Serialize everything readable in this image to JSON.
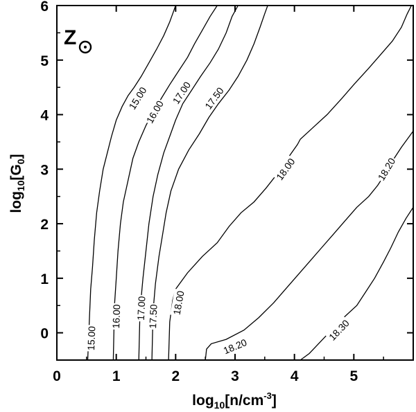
{
  "chart_data": {
    "type": "line",
    "panel_label": "Z",
    "panel_symbol": "sun-symbol-icon",
    "xlabel": {
      "base": "log",
      "sub": "10",
      "rest": "[n/cm",
      "sup": "-3",
      "end": "]"
    },
    "ylabel": {
      "base": "log",
      "sub": "10",
      "rest": "[G",
      "sub2": "0",
      "end": "]"
    },
    "xlim": [
      0,
      6
    ],
    "ylim": [
      -0.5,
      6
    ],
    "xticks": [
      0,
      1,
      2,
      3,
      4,
      5
    ],
    "yticks": [
      0,
      1,
      2,
      3,
      4,
      5,
      6
    ],
    "grid": false,
    "series": [
      {
        "name": "15.00",
        "label_at": [
          [
            0.58,
            -0.1
          ],
          [
            1.36,
            4.3
          ]
        ],
        "points": [
          [
            0.52,
            -0.5
          ],
          [
            0.55,
            0.3
          ],
          [
            0.57,
            0.8
          ],
          [
            0.6,
            1.2
          ],
          [
            0.63,
            1.7
          ],
          [
            0.67,
            2.2
          ],
          [
            0.72,
            2.6
          ],
          [
            0.78,
            3.0
          ],
          [
            0.85,
            3.3
          ],
          [
            0.92,
            3.6
          ],
          [
            1.0,
            3.9
          ],
          [
            1.1,
            4.15
          ],
          [
            1.2,
            4.35
          ],
          [
            1.3,
            4.5
          ],
          [
            1.42,
            4.7
          ],
          [
            1.55,
            4.95
          ],
          [
            1.68,
            5.2
          ],
          [
            1.8,
            5.45
          ],
          [
            1.9,
            5.7
          ],
          [
            1.95,
            5.85
          ],
          [
            2.0,
            6.0
          ]
        ]
      },
      {
        "name": "16.00",
        "label_at": [
          [
            1.0,
            0.3
          ],
          [
            1.65,
            4.05
          ]
        ],
        "points": [
          [
            0.95,
            -0.5
          ],
          [
            0.97,
            0.5
          ],
          [
            1.0,
            1.0
          ],
          [
            1.03,
            1.5
          ],
          [
            1.07,
            2.0
          ],
          [
            1.12,
            2.4
          ],
          [
            1.2,
            2.8
          ],
          [
            1.28,
            3.2
          ],
          [
            1.38,
            3.5
          ],
          [
            1.5,
            3.8
          ],
          [
            1.62,
            4.05
          ],
          [
            1.76,
            4.3
          ],
          [
            1.9,
            4.55
          ],
          [
            2.05,
            4.8
          ],
          [
            2.2,
            5.05
          ],
          [
            2.32,
            5.3
          ],
          [
            2.45,
            5.55
          ],
          [
            2.58,
            5.8
          ],
          [
            2.7,
            6.0
          ]
        ]
      },
      {
        "name": "17.00",
        "label_at": [
          [
            1.42,
            0.45
          ],
          [
            2.1,
            4.4
          ]
        ],
        "points": [
          [
            1.38,
            -0.5
          ],
          [
            1.4,
            0.4
          ],
          [
            1.45,
            1.0
          ],
          [
            1.5,
            1.5
          ],
          [
            1.55,
            2.0
          ],
          [
            1.62,
            2.5
          ],
          [
            1.7,
            2.9
          ],
          [
            1.8,
            3.3
          ],
          [
            1.9,
            3.6
          ],
          [
            2.0,
            3.9
          ],
          [
            2.12,
            4.2
          ],
          [
            2.27,
            4.45
          ],
          [
            2.42,
            4.7
          ],
          [
            2.58,
            4.95
          ],
          [
            2.72,
            5.2
          ],
          [
            2.85,
            5.5
          ],
          [
            2.95,
            5.8
          ],
          [
            3.05,
            6.0
          ]
        ]
      },
      {
        "name": "17.50",
        "label_at": [
          [
            1.62,
            0.3
          ],
          [
            2.65,
            4.3
          ]
        ],
        "points": [
          [
            1.6,
            -0.5
          ],
          [
            1.62,
            0.4
          ],
          [
            1.66,
            0.9
          ],
          [
            1.72,
            1.4
          ],
          [
            1.78,
            1.8
          ],
          [
            1.84,
            2.2
          ],
          [
            1.92,
            2.6
          ],
          [
            2.05,
            3.0
          ],
          [
            2.22,
            3.35
          ],
          [
            2.4,
            3.65
          ],
          [
            2.56,
            3.95
          ],
          [
            2.72,
            4.2
          ],
          [
            2.9,
            4.45
          ],
          [
            3.05,
            4.7
          ],
          [
            3.2,
            5.0
          ],
          [
            3.32,
            5.3
          ],
          [
            3.42,
            5.6
          ],
          [
            3.5,
            5.85
          ],
          [
            3.55,
            6.0
          ]
        ]
      },
      {
        "name": "18.00",
        "label_at": [
          [
            2.05,
            0.55
          ],
          [
            3.85,
            3.0
          ]
        ],
        "points": [
          [
            1.88,
            -0.5
          ],
          [
            1.9,
            0.2
          ],
          [
            1.95,
            0.6
          ],
          [
            2.0,
            0.8
          ],
          [
            2.2,
            1.1
          ],
          [
            2.45,
            1.4
          ],
          [
            2.7,
            1.65
          ],
          [
            2.9,
            1.95
          ],
          [
            3.1,
            2.2
          ],
          [
            3.32,
            2.4
          ],
          [
            3.52,
            2.65
          ],
          [
            3.7,
            2.9
          ],
          [
            3.92,
            3.25
          ],
          [
            4.05,
            3.45
          ],
          [
            4.1,
            3.55
          ],
          [
            4.3,
            3.75
          ],
          [
            4.55,
            4.0
          ],
          [
            4.8,
            4.3
          ],
          [
            5.0,
            4.55
          ],
          [
            5.25,
            4.85
          ],
          [
            5.45,
            5.1
          ],
          [
            5.65,
            5.35
          ],
          [
            5.8,
            5.6
          ],
          [
            5.9,
            5.85
          ],
          [
            5.97,
            6.0
          ]
        ]
      },
      {
        "name": "18.20",
        "label_at": [
          [
            3.0,
            -0.25
          ],
          [
            5.55,
            3.0
          ]
        ],
        "points": [
          [
            2.5,
            -0.5
          ],
          [
            2.52,
            -0.3
          ],
          [
            2.6,
            -0.2
          ],
          [
            2.85,
            -0.12
          ],
          [
            3.15,
            0.05
          ],
          [
            3.4,
            0.28
          ],
          [
            3.65,
            0.55
          ],
          [
            3.85,
            0.8
          ],
          [
            4.05,
            1.05
          ],
          [
            4.25,
            1.3
          ],
          [
            4.45,
            1.55
          ],
          [
            4.65,
            1.8
          ],
          [
            4.85,
            2.05
          ],
          [
            5.05,
            2.3
          ],
          [
            5.25,
            2.5
          ],
          [
            5.4,
            2.7
          ],
          [
            5.55,
            2.95
          ],
          [
            5.65,
            3.15
          ],
          [
            5.8,
            3.4
          ],
          [
            6.0,
            3.7
          ]
        ]
      },
      {
        "name": "18.30",
        "label_at": [
          [
            4.75,
            0.05
          ]
        ],
        "points": [
          [
            4.1,
            -0.5
          ],
          [
            4.25,
            -0.38
          ],
          [
            4.45,
            -0.15
          ],
          [
            4.65,
            0.08
          ],
          [
            4.85,
            0.3
          ],
          [
            5.05,
            0.5
          ],
          [
            5.2,
            0.75
          ],
          [
            5.35,
            1.0
          ],
          [
            5.5,
            1.3
          ],
          [
            5.62,
            1.55
          ],
          [
            5.75,
            1.85
          ],
          [
            5.88,
            2.1
          ],
          [
            6.0,
            2.3
          ]
        ]
      }
    ]
  }
}
